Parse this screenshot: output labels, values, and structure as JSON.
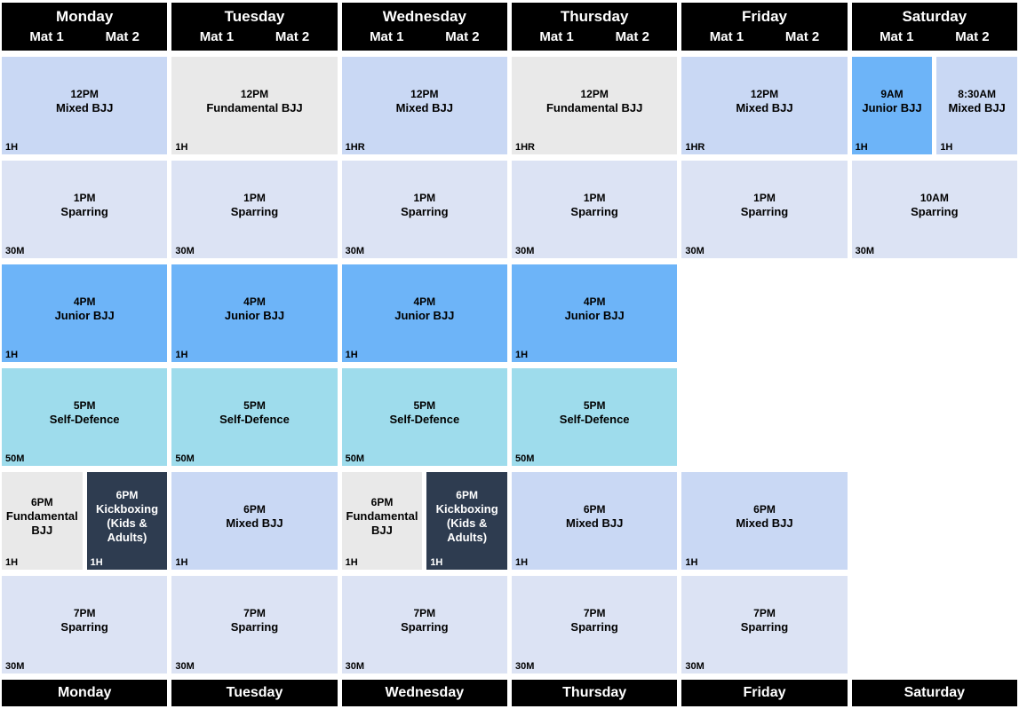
{
  "palette": {
    "header": {
      "bg": "#000000",
      "fg": "#ffffff"
    },
    "mixed": {
      "bg": "#c9d8f4",
      "fg": "#000000"
    },
    "fundamental": {
      "bg": "#e9e9e9",
      "fg": "#000000"
    },
    "sparring": {
      "bg": "#dce3f4",
      "fg": "#000000"
    },
    "junior": {
      "bg": "#6db4f8",
      "fg": "#000000"
    },
    "selfdefence": {
      "bg": "#9edcec",
      "fg": "#000000"
    },
    "kickboxing": {
      "bg": "#2e3c50",
      "fg": "#ffffff"
    }
  },
  "days": [
    {
      "name": "Monday",
      "mats": [
        "Mat 1",
        "Mat 2"
      ],
      "rows": [
        {
          "type": "mixed",
          "time": "12PM",
          "title": "Mixed BJJ",
          "duration": "1H"
        },
        {
          "type": "sparring",
          "time": "1PM",
          "title": "Sparring",
          "duration": "30M"
        },
        {
          "type": "junior",
          "time": "4PM",
          "title": "Junior BJJ",
          "duration": "1H"
        },
        {
          "type": "selfdefence",
          "time": "5PM",
          "title": "Self-Defence",
          "duration": "50M"
        },
        {
          "blocks": [
            {
              "type": "fundamental",
              "time": "6PM",
              "title": "Fundamental BJJ",
              "duration": "1H"
            },
            {
              "type": "kickboxing",
              "time": "6PM",
              "title": "Kickboxing (Kids & Adults)",
              "duration": "1H"
            }
          ]
        },
        {
          "type": "sparring",
          "time": "7PM",
          "title": "Sparring",
          "duration": "30M"
        }
      ]
    },
    {
      "name": "Tuesday",
      "mats": [
        "Mat 1",
        "Mat 2"
      ],
      "rows": [
        {
          "type": "fundamental",
          "time": "12PM",
          "title": "Fundamental BJJ",
          "duration": "1H"
        },
        {
          "type": "sparring",
          "time": "1PM",
          "title": "Sparring",
          "duration": "30M"
        },
        {
          "type": "junior",
          "time": "4PM",
          "title": "Junior BJJ",
          "duration": "1H"
        },
        {
          "type": "selfdefence",
          "time": "5PM",
          "title": "Self-Defence",
          "duration": "50M"
        },
        {
          "type": "mixed",
          "time": "6PM",
          "title": "Mixed BJJ",
          "duration": "1H"
        },
        {
          "type": "sparring",
          "time": "7PM",
          "title": "Sparring",
          "duration": "30M"
        }
      ]
    },
    {
      "name": "Wednesday",
      "mats": [
        "Mat 1",
        "Mat 2"
      ],
      "rows": [
        {
          "type": "mixed",
          "time": "12PM",
          "title": "Mixed BJJ",
          "duration": "1HR"
        },
        {
          "type": "sparring",
          "time": "1PM",
          "title": "Sparring",
          "duration": "30M"
        },
        {
          "type": "junior",
          "time": "4PM",
          "title": "Junior BJJ",
          "duration": "1H"
        },
        {
          "type": "selfdefence",
          "time": "5PM",
          "title": "Self-Defence",
          "duration": "50M"
        },
        {
          "blocks": [
            {
              "type": "fundamental",
              "time": "6PM",
              "title": "Fundamental BJJ",
              "duration": "1H"
            },
            {
              "type": "kickboxing",
              "time": "6PM",
              "title": "Kickboxing (Kids & Adults)",
              "duration": "1H"
            }
          ]
        },
        {
          "type": "sparring",
          "time": "7PM",
          "title": "Sparring",
          "duration": "30M"
        }
      ]
    },
    {
      "name": "Thursday",
      "mats": [
        "Mat 1",
        "Mat 2"
      ],
      "rows": [
        {
          "type": "fundamental",
          "time": "12PM",
          "title": "Fundamental BJJ",
          "duration": "1HR"
        },
        {
          "type": "sparring",
          "time": "1PM",
          "title": "Sparring",
          "duration": "30M"
        },
        {
          "type": "junior",
          "time": "4PM",
          "title": "Junior BJJ",
          "duration": "1H"
        },
        {
          "type": "selfdefence",
          "time": "5PM",
          "title": "Self-Defence",
          "duration": "50M"
        },
        {
          "type": "mixed",
          "time": "6PM",
          "title": "Mixed BJJ",
          "duration": "1H"
        },
        {
          "type": "sparring",
          "time": "7PM",
          "title": "Sparring",
          "duration": "30M"
        }
      ]
    },
    {
      "name": "Friday",
      "mats": [
        "Mat 1",
        "Mat 2"
      ],
      "rows": [
        {
          "type": "mixed",
          "time": "12PM",
          "title": "Mixed BJJ",
          "duration": "1HR"
        },
        {
          "type": "sparring",
          "time": "1PM",
          "title": "Sparring",
          "duration": "30M"
        },
        {},
        {},
        {
          "type": "mixed",
          "time": "6PM",
          "title": "Mixed BJJ",
          "duration": "1H"
        },
        {
          "type": "sparring",
          "time": "7PM",
          "title": "Sparring",
          "duration": "30M"
        }
      ]
    },
    {
      "name": "Saturday",
      "mats": [
        "Mat 1",
        "Mat 2"
      ],
      "rows": [
        {
          "blocks": [
            {
              "type": "junior",
              "time": "9AM",
              "title": "Junior BJJ",
              "duration": "1H"
            },
            {
              "type": "mixed",
              "time": "8:30AM",
              "title": "Mixed BJJ",
              "duration": "1H"
            }
          ]
        },
        {
          "type": "sparring",
          "time": "10AM",
          "title": "Sparring",
          "duration": "30M"
        },
        {},
        {},
        {},
        {}
      ]
    }
  ]
}
